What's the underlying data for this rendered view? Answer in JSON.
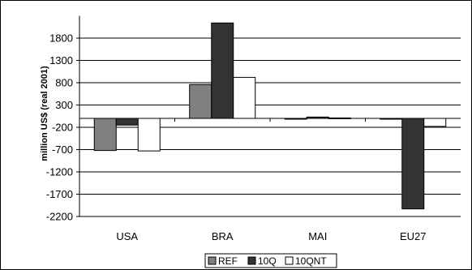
{
  "chart_data": {
    "type": "bar",
    "title": "",
    "xlabel": "",
    "ylabel": "million US$ (real 2001)",
    "categories": [
      "USA",
      "BRA",
      "MAI",
      "EU27"
    ],
    "series": [
      {
        "name": "REF",
        "values": [
          -720,
          760,
          0,
          0
        ],
        "color": "#808080"
      },
      {
        "name": "10Q",
        "values": [
          -150,
          2140,
          30,
          -2030
        ],
        "color": "#333333"
      },
      {
        "name": "10QNT",
        "values": [
          -730,
          920,
          10,
          -180
        ],
        "color": "#ffffff"
      }
    ],
    "ylim": [
      -2200,
      2300
    ],
    "yticks": [
      1800,
      1300,
      800,
      300,
      -200,
      -700,
      -1200,
      -1700,
      -2200
    ],
    "grid": true,
    "legend": "bottom-center"
  }
}
